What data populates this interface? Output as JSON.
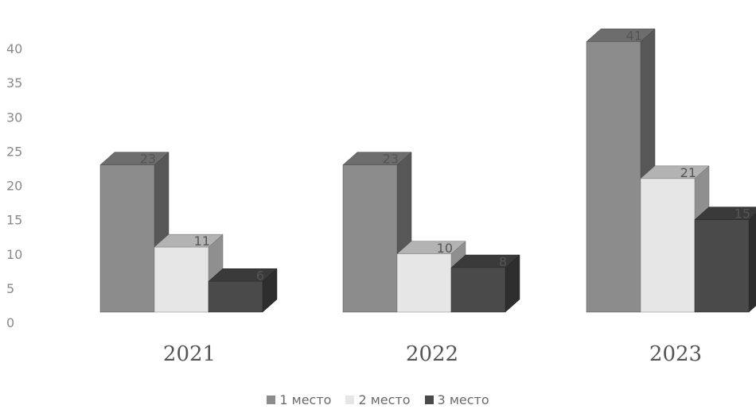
{
  "chart_data": {
    "type": "bar",
    "categories": [
      "2021",
      "2022",
      "2023"
    ],
    "series": [
      {
        "name": "1 место",
        "values": [
          23,
          23,
          41
        ],
        "color": "#8c8c8c"
      },
      {
        "name": "2 место",
        "values": [
          11,
          10,
          21
        ],
        "color": "#e6e6e6"
      },
      {
        "name": "3 место",
        "values": [
          6,
          8,
          15
        ],
        "color": "#4a4a4a"
      }
    ],
    "ylim": [
      0,
      40
    ],
    "yticks": [
      0,
      5,
      10,
      15,
      20,
      25,
      30,
      35,
      40
    ],
    "data_labels": true,
    "grid": false,
    "legend_position": "bottom",
    "style": "3d-column"
  }
}
